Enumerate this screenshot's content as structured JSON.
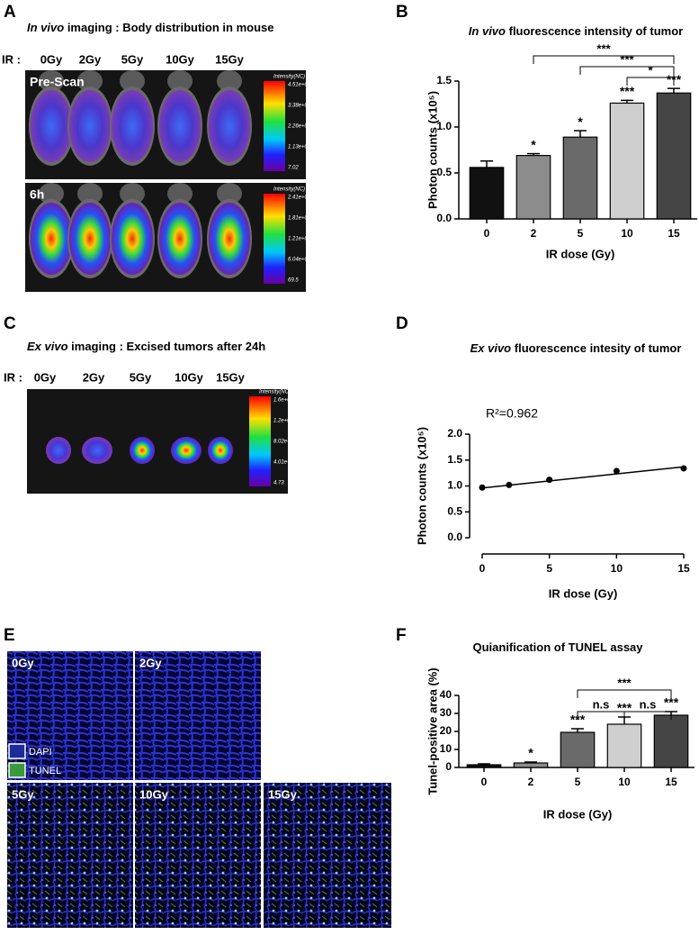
{
  "panel_a": {
    "label": "A",
    "title_italic": "In vivo",
    "title_rest": "imaging : Body distribution in mouse",
    "ir_label": "IR :",
    "doses": [
      "0Gy",
      "2Gy",
      "5Gy",
      "10Gy",
      "15Gy"
    ],
    "images": [
      {
        "label": "Pre-Scan",
        "colorbar_title": "Intensity(NC)",
        "colorbar_ticks": [
          "4.51e+003",
          "3.38e+003",
          "2.26e+003",
          "1.13e+003",
          "7.02"
        ]
      },
      {
        "label": "6h",
        "colorbar_title": "Intensity(NC)",
        "colorbar_ticks": [
          "2.41e+005",
          "1.81e+005",
          "1.21e+005",
          "6.04e+004",
          "69.5"
        ]
      }
    ]
  },
  "panel_c": {
    "label": "C",
    "title_italic": "Ex vivo",
    "title_rest": "imaging : Excised tumors after 24h",
    "ir_label": "IR :",
    "doses": [
      "0Gy",
      "2Gy",
      "5Gy",
      "10Gy",
      "15Gy"
    ],
    "colorbar_title": "Intensity(NC)",
    "colorbar_ticks": [
      "1.6e+005",
      "1.2e+005",
      "8.02e+004",
      "4.01e+004",
      "4.73"
    ]
  },
  "panel_e": {
    "label": "E",
    "tiles": [
      "0Gy",
      "2Gy",
      "5Gy",
      "10Gy",
      "15Gy"
    ],
    "legend": [
      "DAPI",
      "TUNEL"
    ]
  },
  "chart_data": [
    {
      "type": "bar",
      "panel_label": "B",
      "title_italic": "In vivo",
      "title_rest": "fluorescence intensity of tumor",
      "x_label": "IR dose (Gy)",
      "y_label": "Photon counts (x10⁵)",
      "categories": [
        "0",
        "2",
        "5",
        "10",
        "15"
      ],
      "values": [
        0.56,
        0.69,
        0.89,
        1.26,
        1.37
      ],
      "errors": [
        0.07,
        0.02,
        0.07,
        0.03,
        0.05
      ],
      "colors": [
        "#111111",
        "#8c8c8c",
        "#6a6a6a",
        "#cfcfcf",
        "#454545"
      ],
      "ylim": [
        0,
        1.5
      ],
      "yticks": [
        {
          "value": 0,
          "label": "0.0"
        },
        0.5,
        {
          "value": 1,
          "label": "1.0"
        },
        1.5
      ],
      "stars": [
        null,
        "*",
        "*",
        "***",
        "***"
      ],
      "brackets": [
        {
          "categories": [
            "2",
            "15"
          ],
          "label": "***"
        },
        {
          "categories": [
            "5",
            "15"
          ],
          "label": "***"
        },
        {
          "categories": [
            "10",
            "15"
          ],
          "label": "*"
        }
      ]
    },
    {
      "type": "scatter",
      "panel_label": "D",
      "title_italic": "Ex vivo",
      "title_rest": "fluorescence intesity of tumor",
      "x_label": "IR dose (Gy)",
      "y_label": "Photon counts (x10⁵)",
      "x": [
        0,
        2,
        5,
        10,
        15
      ],
      "values": [
        0.97,
        1.02,
        1.12,
        1.29,
        1.34
      ],
      "fit": {
        "x": [
          0,
          15
        ],
        "values": [
          0.96,
          1.37
        ]
      },
      "annotation": "R²=0.962",
      "xlim": [
        0,
        15
      ],
      "xticks": [
        0,
        5,
        10,
        15
      ],
      "ylim": [
        0,
        2
      ],
      "yticks": [
        {
          "value": 0,
          "label": "0.0"
        },
        0.5,
        {
          "value": 1,
          "label": "1.0"
        },
        1.5,
        {
          "value": 2,
          "label": "2.0"
        }
      ]
    },
    {
      "type": "bar",
      "panel_label": "F",
      "title_italic": null,
      "title_rest": "Quianification of TUNEL assay",
      "x_label": "IR dose (Gy)",
      "y_label": "Tunel-positive area (%)",
      "categories": [
        "0",
        "2",
        "5",
        "10",
        "15"
      ],
      "values": [
        1.5,
        2.5,
        19.5,
        24,
        29
      ],
      "errors": [
        0.5,
        0.5,
        2,
        4,
        2
      ],
      "colors": [
        "#111111",
        "#8c8c8c",
        "#6a6a6a",
        "#cfcfcf",
        "#454545"
      ],
      "ylim": [
        0,
        40
      ],
      "yticks": [
        0,
        10,
        20,
        30,
        40
      ],
      "stars": [
        null,
        "*",
        "***",
        "***",
        "***"
      ],
      "brackets": [
        {
          "categories": [
            "5",
            "10"
          ],
          "label": "n.s"
        },
        {
          "categories": [
            "10",
            "15"
          ],
          "label": "n.s"
        },
        {
          "categories": [
            "5",
            "15"
          ],
          "label": "***"
        }
      ]
    }
  ]
}
